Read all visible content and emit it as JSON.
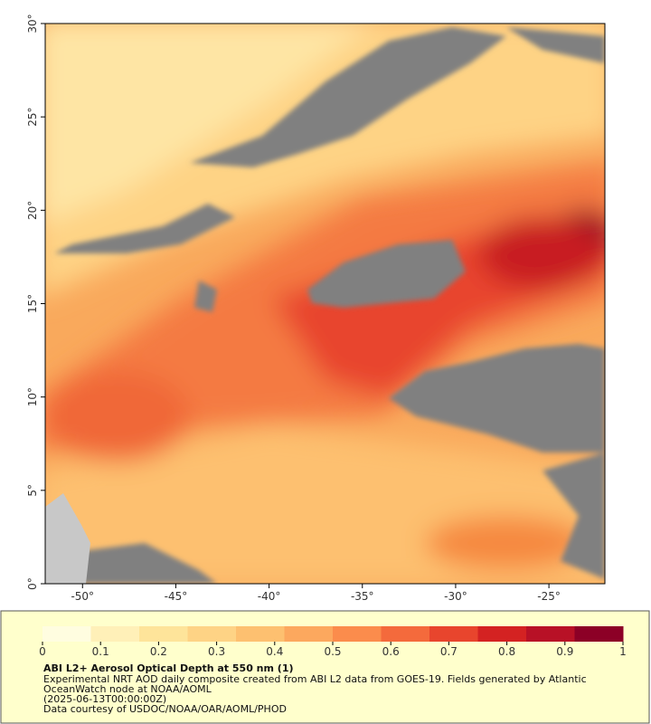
{
  "chart_data": {
    "type": "raster-map",
    "xlim": [
      -52,
      -22
    ],
    "ylim": [
      0,
      30
    ],
    "xticks": [
      {
        "value": -50,
        "label": "-50°"
      },
      {
        "value": -45,
        "label": "-45°"
      },
      {
        "value": -40,
        "label": "-40°"
      },
      {
        "value": -35,
        "label": "-35°"
      },
      {
        "value": -30,
        "label": "-30°"
      },
      {
        "value": -25,
        "label": "-25°"
      }
    ],
    "yticks": [
      {
        "value": 0,
        "label": "0°"
      },
      {
        "value": 5,
        "label": "5°"
      },
      {
        "value": 10,
        "label": "10°"
      },
      {
        "value": 15,
        "label": "15°"
      },
      {
        "value": 20,
        "label": "20°"
      },
      {
        "value": 25,
        "label": "25°"
      },
      {
        "value": 30,
        "label": "30°"
      }
    ],
    "colorbar": {
      "lim": [
        0,
        1
      ],
      "ticks": [
        0,
        0.1,
        0.2,
        0.3,
        0.4,
        0.5,
        0.6,
        0.7,
        0.8,
        0.9,
        1
      ],
      "colors": [
        "#fffde0",
        "#fff0b8",
        "#fee49a",
        "#fed385",
        "#fdc070",
        "#fca85e",
        "#fb8c4c",
        "#f46a3c",
        "#e8452d",
        "#d42222",
        "#b81126",
        "#8c0026"
      ]
    },
    "title": "ABI L2+ Aerosol Optical Depth at 550 nm (1)",
    "description": [
      "Experimental NRT AOD daily composite created from ABI L2 data from GOES-19. Fields generated by Atlantic",
      "OceanWatch node at NOAA/AOML"
    ],
    "time": "(2025-06-13T00:00:00Z)",
    "credit": "Data courtesy of USDOC/NOAA/OAR/AOML/PHOD"
  }
}
